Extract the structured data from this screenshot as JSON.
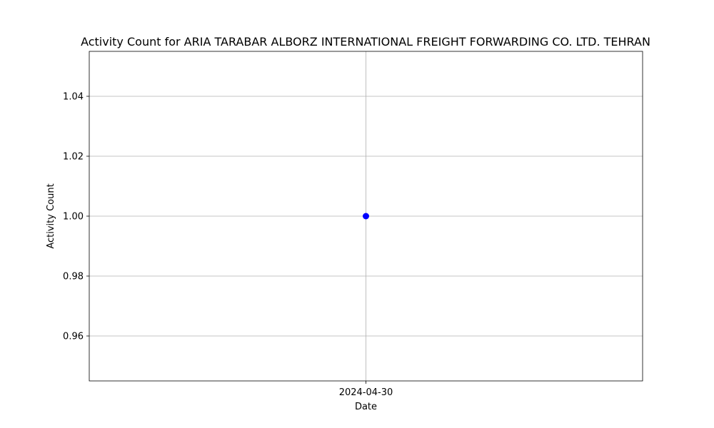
{
  "chart_data": {
    "type": "line",
    "title": "Activity Count for ARIA TARABAR ALBORZ INTERNATIONAL FREIGHT FORWARDING CO. LTD. TEHRAN",
    "xlabel": "Date",
    "ylabel": "Activity Count",
    "categories": [
      "2024-04-30"
    ],
    "series": [
      {
        "values": [
          1
        ]
      }
    ],
    "ylim": [
      0.945,
      1.055
    ],
    "yticks": [
      "0.96",
      "0.98",
      "1.00",
      "1.02",
      "1.04"
    ],
    "grid": true,
    "marker_color": "#0000ff"
  }
}
